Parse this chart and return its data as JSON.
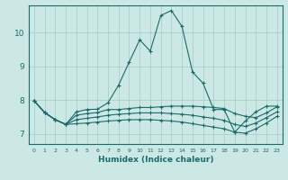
{
  "xlabel": "Humidex (Indice chaleur)",
  "x_ticks": [
    0,
    1,
    2,
    3,
    4,
    5,
    6,
    7,
    8,
    9,
    10,
    11,
    12,
    13,
    14,
    15,
    16,
    17,
    18,
    19,
    20,
    21,
    22,
    23
  ],
  "y_ticks": [
    7,
    8,
    9,
    10
  ],
  "xlim": [
    -0.5,
    23.5
  ],
  "ylim": [
    6.7,
    10.8
  ],
  "bg_color": "#cce8e4",
  "line_color": "#1a6b6b",
  "grid_color": "#aacfcc",
  "series": [
    [
      7.98,
      7.63,
      7.42,
      7.28,
      7.65,
      7.72,
      7.73,
      7.92,
      8.44,
      9.12,
      9.78,
      9.45,
      10.5,
      10.65,
      10.18,
      8.83,
      8.5,
      7.72,
      7.72,
      7.05,
      7.38,
      7.65,
      7.82,
      7.82
    ],
    [
      7.98,
      7.63,
      7.42,
      7.28,
      7.55,
      7.6,
      7.63,
      7.72,
      7.72,
      7.75,
      7.78,
      7.78,
      7.8,
      7.82,
      7.82,
      7.82,
      7.8,
      7.78,
      7.75,
      7.6,
      7.52,
      7.48,
      7.62,
      7.8
    ],
    [
      7.98,
      7.63,
      7.42,
      7.28,
      7.42,
      7.46,
      7.5,
      7.55,
      7.58,
      7.6,
      7.62,
      7.62,
      7.62,
      7.6,
      7.58,
      7.55,
      7.5,
      7.46,
      7.4,
      7.28,
      7.22,
      7.32,
      7.48,
      7.65
    ],
    [
      7.98,
      7.63,
      7.42,
      7.28,
      7.3,
      7.32,
      7.35,
      7.38,
      7.4,
      7.42,
      7.42,
      7.42,
      7.4,
      7.38,
      7.35,
      7.3,
      7.25,
      7.2,
      7.15,
      7.05,
      7.02,
      7.15,
      7.32,
      7.52
    ]
  ]
}
